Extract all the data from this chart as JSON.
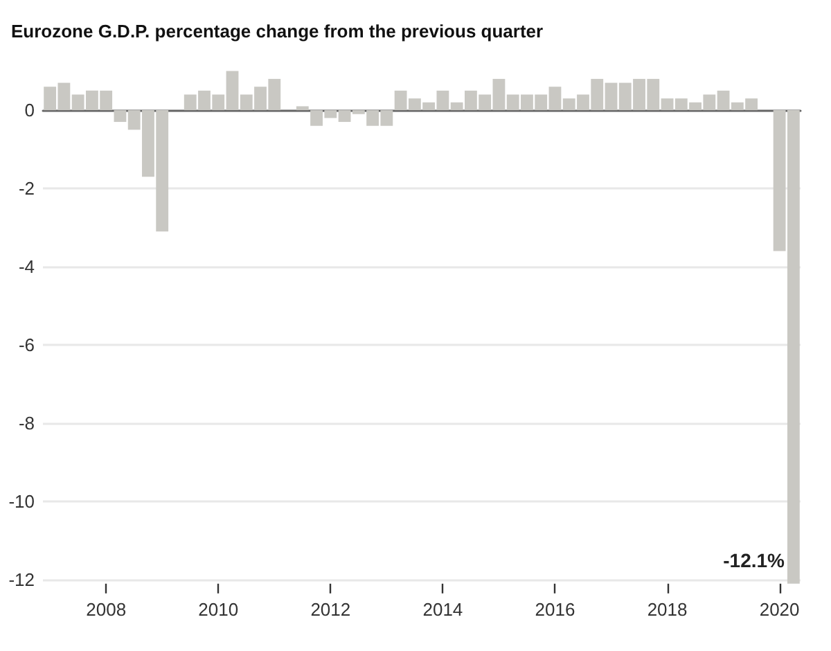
{
  "chart_data": {
    "type": "bar",
    "title": "Eurozone G.D.P. percentage change from the previous quarter",
    "categories": [
      null,
      null,
      null,
      null,
      "2008",
      null,
      null,
      null,
      null,
      null,
      null,
      null,
      "2010",
      null,
      null,
      null,
      null,
      null,
      null,
      null,
      "2012",
      null,
      null,
      null,
      null,
      null,
      null,
      null,
      "2014",
      null,
      null,
      null,
      null,
      null,
      null,
      null,
      "2016",
      null,
      null,
      null,
      null,
      null,
      null,
      null,
      "2018",
      null,
      null,
      null,
      null,
      null,
      null,
      null,
      "2020",
      null
    ],
    "values": [
      0.6,
      0.7,
      0.4,
      0.5,
      0.5,
      -0.3,
      -0.5,
      -1.7,
      -3.1,
      0,
      0.4,
      0.5,
      0.4,
      1.0,
      0.4,
      0.6,
      0.8,
      0,
      0.1,
      -0.4,
      -0.2,
      -0.3,
      -0.1,
      -0.4,
      -0.4,
      0.5,
      0.3,
      0.2,
      0.5,
      0.2,
      0.5,
      0.4,
      0.8,
      0.4,
      0.4,
      0.4,
      0.6,
      0.3,
      0.4,
      0.8,
      0.7,
      0.7,
      0.8,
      0.8,
      0.3,
      0.3,
      0.2,
      0.4,
      0.5,
      0.2,
      0.3,
      0,
      -3.6,
      -12.1
    ],
    "value_labels": [
      null,
      null,
      null,
      null,
      null,
      null,
      null,
      null,
      null,
      null,
      null,
      null,
      null,
      null,
      null,
      null,
      null,
      null,
      null,
      null,
      null,
      null,
      null,
      null,
      null,
      null,
      null,
      null,
      null,
      null,
      null,
      null,
      null,
      null,
      null,
      null,
      null,
      null,
      null,
      null,
      null,
      null,
      null,
      null,
      null,
      null,
      null,
      null,
      null,
      null,
      null,
      null,
      null,
      "-12.1%"
    ],
    "color": "#c9c8c3",
    "ylim": [
      -12.1,
      1.0
    ],
    "yticks": [
      -12,
      -10,
      -8,
      -6,
      -4,
      -2,
      0
    ],
    "grid": "y"
  }
}
